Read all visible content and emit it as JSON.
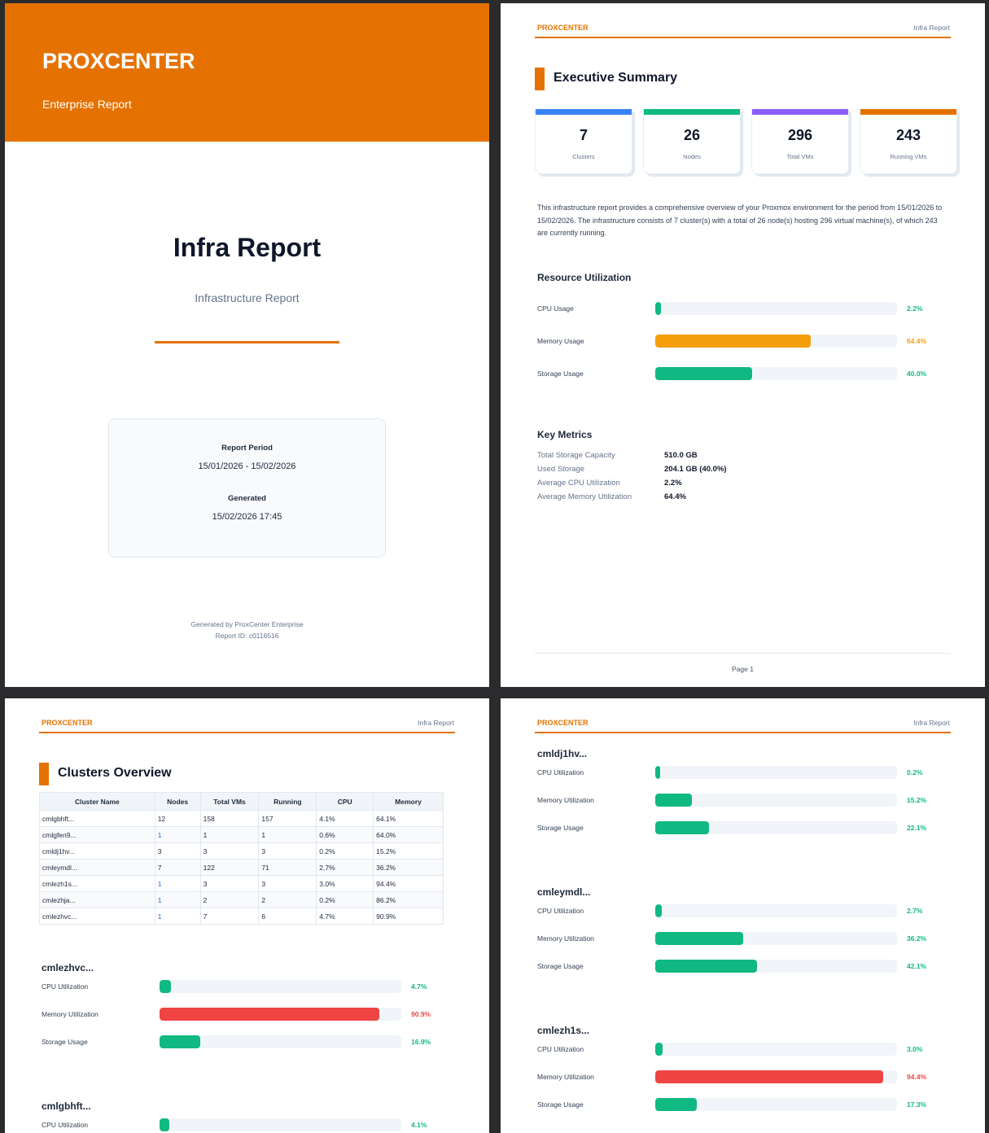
{
  "brand": "PROXCENTER",
  "header_right": "Infra Report",
  "cover": {
    "brand": "PROXCENTER",
    "subtitle": "Enterprise Report",
    "title": "Infra Report",
    "report_type": "Infrastructure Report",
    "period_label": "Report Period",
    "period_value": "15/01/2026 - 15/02/2026",
    "generated_label": "Generated",
    "generated_value": "15/02/2026 17:45",
    "footer_line1": "Generated by ProxCenter Enterprise",
    "footer_line2": "Report ID: c0116516",
    "accent": "#e57200"
  },
  "summary": {
    "title": "Executive Summary",
    "cards": [
      {
        "value": "7",
        "label": "Clusters",
        "color": "#3b82f6"
      },
      {
        "value": "26",
        "label": "Nodes",
        "color": "#10b981"
      },
      {
        "value": "296",
        "label": "Total VMs",
        "color": "#8b5cf6"
      },
      {
        "value": "243",
        "label": "Running VMs",
        "color": "#e57200"
      }
    ],
    "paragraph": "This infrastructure report provides a comprehensive overview of your Proxmox environment for the period from 15/01/2026 to 15/02/2026. The infrastructure consists of 7 cluster(s) with a total of 26 node(s) hosting 296 virtual machine(s), of which 243 are currently running.",
    "resource_title": "Resource Utilization",
    "resources": [
      {
        "label": "CPU Usage",
        "pct": "2.2%",
        "color": "#10b981"
      },
      {
        "label": "Memory Usage",
        "pct": "64.4%",
        "color": "#f59e0b"
      },
      {
        "label": "Storage Usage",
        "pct": "40.0%",
        "color": "#10b981"
      }
    ],
    "metrics_title": "Key Metrics",
    "metrics": [
      {
        "label": "Total Storage Capacity",
        "value": "510.0 GB"
      },
      {
        "label": "Used Storage",
        "value": "204.1 GB (40.0%)"
      },
      {
        "label": "Average CPU Utilization",
        "value": "2.2%"
      },
      {
        "label": "Average Memory Utilization",
        "value": "64.4%"
      }
    ],
    "page_label": "Page 1"
  },
  "clusters": {
    "title": "Clusters Overview",
    "columns": [
      "Cluster Name",
      "Nodes",
      "Total VMs",
      "Running",
      "CPU",
      "Memory"
    ],
    "rows": [
      [
        "cmlgbhft...",
        "12",
        "158",
        "157",
        "4.1%",
        "64.1%"
      ],
      [
        "cmlgfen9...",
        "1",
        "1",
        "1",
        "0.6%",
        "64.0%"
      ],
      [
        "cmldj1hv...",
        "3",
        "3",
        "3",
        "0.2%",
        "15.2%"
      ],
      [
        "cmleymdl...",
        "7",
        "122",
        "71",
        "2.7%",
        "36.2%"
      ],
      [
        "cmlezh1s...",
        "1",
        "3",
        "3",
        "3.0%",
        "94.4%"
      ],
      [
        "cmlezhja...",
        "1",
        "2",
        "2",
        "0.2%",
        "86.2%"
      ],
      [
        "cmlezhvc...",
        "1",
        "7",
        "6",
        "4.7%",
        "90.9%"
      ]
    ]
  },
  "details_page3": [
    {
      "name": "cmlezhvc...",
      "bars": [
        {
          "label": "CPU Utilization",
          "pct": "4.7%",
          "color": "#10b981"
        },
        {
          "label": "Memory Utilization",
          "pct": "90.9%",
          "color": "#ef4444"
        },
        {
          "label": "Storage Usage",
          "pct": "16.9%",
          "color": "#10b981"
        }
      ]
    },
    {
      "name": "cmlgbhft...",
      "bars": [
        {
          "label": "CPU Utilization",
          "pct": "4.1%",
          "color": "#10b981"
        }
      ]
    }
  ],
  "details_page4": [
    {
      "name": "cmldj1hv...",
      "bars": [
        {
          "label": "CPU Utilization",
          "pct": "0.2%",
          "color": "#10b981"
        },
        {
          "label": "Memory Utilization",
          "pct": "15.2%",
          "color": "#10b981"
        },
        {
          "label": "Storage Usage",
          "pct": "22.1%",
          "color": "#10b981"
        }
      ]
    },
    {
      "name": "cmleymdl...",
      "bars": [
        {
          "label": "CPU Utilization",
          "pct": "2.7%",
          "color": "#10b981"
        },
        {
          "label": "Memory Utilization",
          "pct": "36.2%",
          "color": "#10b981"
        },
        {
          "label": "Storage Usage",
          "pct": "42.1%",
          "color": "#10b981"
        }
      ]
    },
    {
      "name": "cmlezh1s...",
      "bars": [
        {
          "label": "CPU Utilization",
          "pct": "3.0%",
          "color": "#10b981"
        },
        {
          "label": "Memory Utilization",
          "pct": "94.4%",
          "color": "#ef4444"
        },
        {
          "label": "Storage Usage",
          "pct": "17.3%",
          "color": "#10b981"
        }
      ]
    }
  ]
}
